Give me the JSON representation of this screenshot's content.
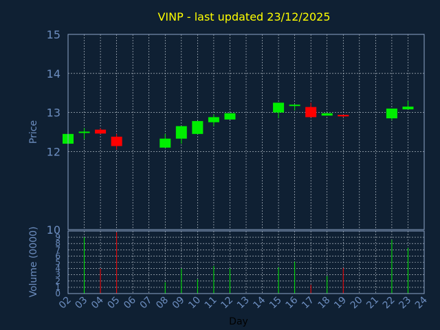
{
  "chart_data": {
    "type": "candlestick",
    "title": "VINP - last updated 23/12/2025",
    "xlabel": "Day",
    "ylabel": "Price",
    "volume_ylabel": "Volume (0000)",
    "xlim": [
      2,
      24
    ],
    "ylim": [
      10,
      15
    ],
    "volume_ylim": [
      0,
      10
    ],
    "x_ticks": [
      "02",
      "03",
      "04",
      "05",
      "06",
      "07",
      "08",
      "09",
      "10",
      "11",
      "12",
      "13",
      "14",
      "15",
      "16",
      "17",
      "18",
      "19",
      "20",
      "21",
      "22",
      "23",
      "24"
    ],
    "y_ticks": [
      12,
      13,
      14,
      15
    ],
    "volume_ticks": [
      0,
      1,
      2,
      3,
      4,
      5,
      6,
      7,
      8,
      9
    ],
    "price_tick_labels": [
      "12",
      "13",
      "14",
      "15"
    ],
    "boundary_tick_label": "10",
    "grid": true,
    "colors": {
      "background": "#0f2033",
      "axis": "#8fa6c8",
      "label": "#6d8ec0",
      "title": "#ffff00",
      "up": "#00ee00",
      "down": "#ff0000",
      "grid": "#d0d8e0"
    },
    "candles": [
      {
        "day": 2,
        "open": 12.2,
        "high": 12.45,
        "low": 12.2,
        "close": 12.45
      },
      {
        "day": 3,
        "open": 12.5,
        "high": 12.6,
        "low": 12.32,
        "close": 12.51
      },
      {
        "day": 4,
        "open": 12.56,
        "high": 12.6,
        "low": 12.45,
        "close": 12.46
      },
      {
        "day": 5,
        "open": 12.38,
        "high": 12.45,
        "low": 12.05,
        "close": 12.14
      },
      {
        "day": 8,
        "open": 12.1,
        "high": 12.45,
        "low": 12.1,
        "close": 12.33
      },
      {
        "day": 9,
        "open": 12.33,
        "high": 12.65,
        "low": 12.2,
        "close": 12.65
      },
      {
        "day": 10,
        "open": 12.45,
        "high": 12.78,
        "low": 12.45,
        "close": 12.78
      },
      {
        "day": 11,
        "open": 12.75,
        "high": 12.95,
        "low": 12.65,
        "close": 12.88
      },
      {
        "day": 12,
        "open": 12.82,
        "high": 12.98,
        "low": 12.82,
        "close": 12.98
      },
      {
        "day": 15,
        "open": 13.0,
        "high": 13.25,
        "low": 12.85,
        "close": 13.25
      },
      {
        "day": 16,
        "open": 13.18,
        "high": 13.2,
        "low": 13.05,
        "close": 13.2
      },
      {
        "day": 17,
        "open": 13.14,
        "high": 13.25,
        "low": 12.88,
        "close": 12.88
      },
      {
        "day": 18,
        "open": 12.92,
        "high": 13.0,
        "low": 12.92,
        "close": 12.98
      },
      {
        "day": 19,
        "open": 12.94,
        "high": 12.94,
        "low": 12.88,
        "close": 12.9
      },
      {
        "day": 22,
        "open": 12.85,
        "high": 13.1,
        "low": 12.8,
        "close": 13.1
      },
      {
        "day": 23,
        "open": 13.08,
        "high": 13.3,
        "low": 13.08,
        "close": 13.15
      }
    ],
    "volume": [
      {
        "day": 3,
        "value": 9.0,
        "dir": "up"
      },
      {
        "day": 4,
        "value": 4.0,
        "dir": "down"
      },
      {
        "day": 5,
        "value": 9.8,
        "dir": "down"
      },
      {
        "day": 8,
        "value": 1.8,
        "dir": "up"
      },
      {
        "day": 9,
        "value": 4.0,
        "dir": "up"
      },
      {
        "day": 10,
        "value": 2.3,
        "dir": "up"
      },
      {
        "day": 11,
        "value": 4.4,
        "dir": "up"
      },
      {
        "day": 12,
        "value": 4.0,
        "dir": "up"
      },
      {
        "day": 15,
        "value": 4.2,
        "dir": "up"
      },
      {
        "day": 16,
        "value": 5.1,
        "dir": "up"
      },
      {
        "day": 17,
        "value": 1.4,
        "dir": "down"
      },
      {
        "day": 18,
        "value": 2.8,
        "dir": "up"
      },
      {
        "day": 19,
        "value": 4.1,
        "dir": "down"
      },
      {
        "day": 22,
        "value": 8.6,
        "dir": "up"
      },
      {
        "day": 23,
        "value": 7.3,
        "dir": "up"
      }
    ]
  }
}
